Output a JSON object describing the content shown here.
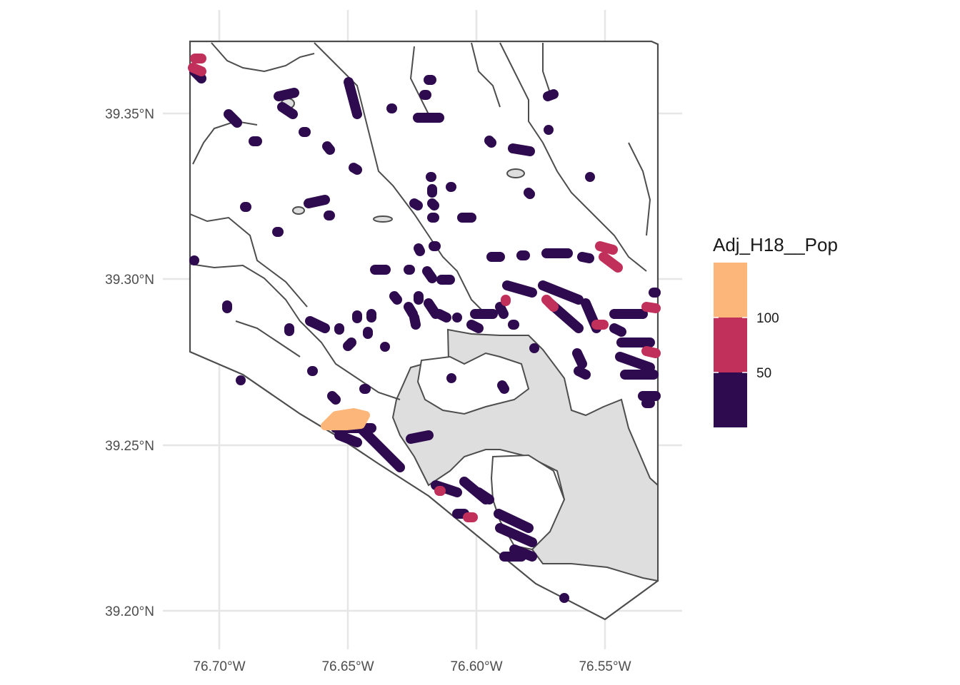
{
  "chart_data": {
    "type": "map",
    "x_ticks": [
      "76.70°W",
      "76.65°W",
      "76.60°W",
      "76.55°W"
    ],
    "y_ticks": [
      "39.35°N",
      "39.30°N",
      "39.25°N",
      "39.20°N"
    ],
    "xlim": [
      -76.712,
      -76.529
    ],
    "ylim": [
      39.197,
      39.372
    ],
    "grid": true,
    "legend": {
      "title": "Adj_H18__Pop",
      "position": "right",
      "breaks": [
        "100",
        "50"
      ],
      "bins": [
        {
          "range": "> 100",
          "color": "#fdb67a"
        },
        {
          "range": "50 – 100",
          "color": "#c0305a"
        },
        {
          "range": "< 50",
          "color": "#2e0a4f"
        }
      ]
    },
    "colors": {
      "low": "#2e0a4f",
      "mid": "#c0305a",
      "high": "#fdb67a",
      "water": "#dedede",
      "outline": "#4d4d4d",
      "grid": "#e6e6e6"
    }
  }
}
